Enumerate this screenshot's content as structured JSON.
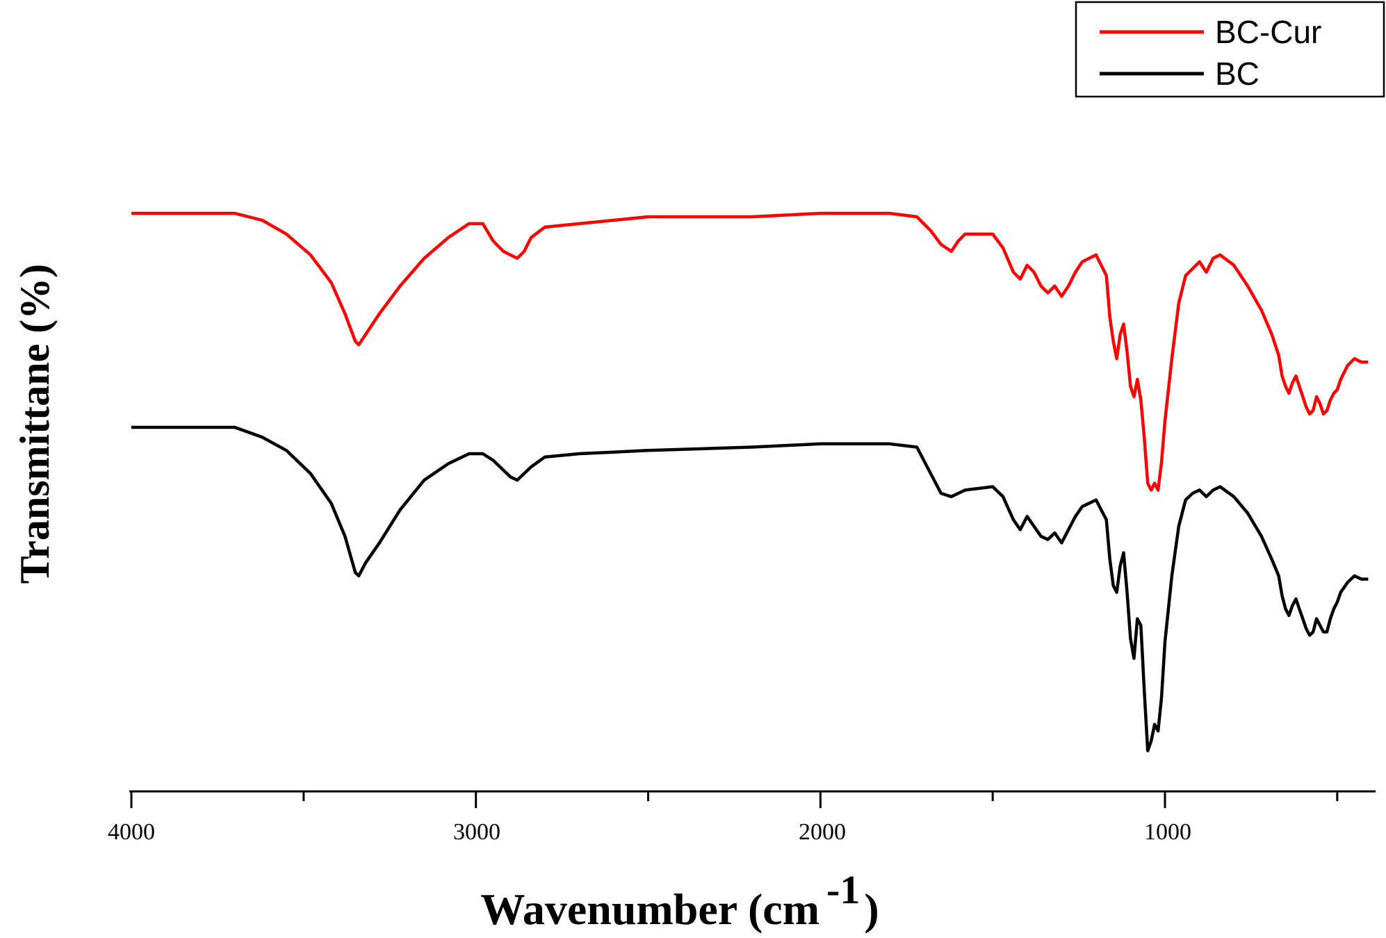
{
  "chart_data": {
    "type": "line",
    "title": "",
    "xlabel": "Wavenumber (cm",
    "xlabel_superscript": "-1",
    "xlabel_close": ")",
    "ylabel": "Transmittane (%)",
    "xlim": [
      4000,
      400
    ],
    "x_reversed": true,
    "x_ticks": [
      4000,
      3000,
      2000,
      1000
    ],
    "x_minor_ticks": [
      3500,
      2500,
      1500,
      500
    ],
    "grid": false,
    "y_ticks_shown": false,
    "legend_position": "top-right",
    "series": [
      {
        "name": "BC-Cur",
        "color": "#ff0000",
        "points": [
          [
            4000,
            100
          ],
          [
            3800,
            100
          ],
          [
            3700,
            100
          ],
          [
            3620,
            98
          ],
          [
            3550,
            94
          ],
          [
            3480,
            88
          ],
          [
            3420,
            80
          ],
          [
            3380,
            71
          ],
          [
            3350,
            63
          ],
          [
            3340,
            62
          ],
          [
            3320,
            65
          ],
          [
            3280,
            71
          ],
          [
            3220,
            79
          ],
          [
            3150,
            87
          ],
          [
            3080,
            93
          ],
          [
            3020,
            97
          ],
          [
            2980,
            97
          ],
          [
            2950,
            92
          ],
          [
            2920,
            89
          ],
          [
            2900,
            88
          ],
          [
            2880,
            87
          ],
          [
            2860,
            89
          ],
          [
            2840,
            93
          ],
          [
            2800,
            96
          ],
          [
            2700,
            97
          ],
          [
            2500,
            99
          ],
          [
            2200,
            99
          ],
          [
            2000,
            100
          ],
          [
            1800,
            100
          ],
          [
            1720,
            99
          ],
          [
            1680,
            95
          ],
          [
            1650,
            91
          ],
          [
            1620,
            89
          ],
          [
            1600,
            92
          ],
          [
            1580,
            94
          ],
          [
            1500,
            94
          ],
          [
            1470,
            90
          ],
          [
            1440,
            83
          ],
          [
            1420,
            81
          ],
          [
            1400,
            85
          ],
          [
            1380,
            83
          ],
          [
            1360,
            79
          ],
          [
            1340,
            77
          ],
          [
            1320,
            79
          ],
          [
            1300,
            76
          ],
          [
            1280,
            79
          ],
          [
            1260,
            83
          ],
          [
            1240,
            86
          ],
          [
            1220,
            87
          ],
          [
            1200,
            88
          ],
          [
            1190,
            86
          ],
          [
            1170,
            82
          ],
          [
            1160,
            70
          ],
          [
            1150,
            63
          ],
          [
            1140,
            58
          ],
          [
            1130,
            65
          ],
          [
            1120,
            68
          ],
          [
            1110,
            60
          ],
          [
            1100,
            50
          ],
          [
            1090,
            47
          ],
          [
            1080,
            52
          ],
          [
            1070,
            46
          ],
          [
            1060,
            35
          ],
          [
            1050,
            22
          ],
          [
            1040,
            20
          ],
          [
            1030,
            22
          ],
          [
            1020,
            20
          ],
          [
            1010,
            28
          ],
          [
            1000,
            40
          ],
          [
            980,
            58
          ],
          [
            960,
            74
          ],
          [
            940,
            82
          ],
          [
            920,
            84
          ],
          [
            900,
            86
          ],
          [
            880,
            83
          ],
          [
            860,
            87
          ],
          [
            840,
            88
          ],
          [
            800,
            85
          ],
          [
            760,
            79
          ],
          [
            720,
            72
          ],
          [
            690,
            65
          ],
          [
            670,
            59
          ],
          [
            660,
            53
          ],
          [
            650,
            50
          ],
          [
            640,
            48
          ],
          [
            630,
            51
          ],
          [
            620,
            53
          ],
          [
            610,
            50
          ],
          [
            600,
            47
          ],
          [
            590,
            44
          ],
          [
            580,
            42
          ],
          [
            570,
            43
          ],
          [
            560,
            47
          ],
          [
            550,
            45
          ],
          [
            540,
            42
          ],
          [
            530,
            43
          ],
          [
            520,
            46
          ],
          [
            510,
            48
          ],
          [
            500,
            49
          ],
          [
            490,
            52
          ],
          [
            470,
            56
          ],
          [
            450,
            58
          ],
          [
            430,
            57
          ],
          [
            410,
            57
          ]
        ]
      },
      {
        "name": "BC",
        "color": "#000000",
        "points": [
          [
            4000,
            100
          ],
          [
            3800,
            100
          ],
          [
            3700,
            100
          ],
          [
            3620,
            97
          ],
          [
            3550,
            93
          ],
          [
            3480,
            86
          ],
          [
            3420,
            77
          ],
          [
            3380,
            67
          ],
          [
            3350,
            56
          ],
          [
            3340,
            55
          ],
          [
            3320,
            59
          ],
          [
            3280,
            65
          ],
          [
            3220,
            75
          ],
          [
            3150,
            84
          ],
          [
            3080,
            89
          ],
          [
            3020,
            92
          ],
          [
            2980,
            92
          ],
          [
            2950,
            90
          ],
          [
            2920,
            87
          ],
          [
            2900,
            85
          ],
          [
            2880,
            84
          ],
          [
            2860,
            86
          ],
          [
            2840,
            88
          ],
          [
            2800,
            91
          ],
          [
            2700,
            92
          ],
          [
            2500,
            93
          ],
          [
            2200,
            94
          ],
          [
            2000,
            95
          ],
          [
            1800,
            95
          ],
          [
            1720,
            94
          ],
          [
            1680,
            86
          ],
          [
            1650,
            80
          ],
          [
            1620,
            79
          ],
          [
            1600,
            80
          ],
          [
            1580,
            81
          ],
          [
            1500,
            82
          ],
          [
            1470,
            79
          ],
          [
            1440,
            72
          ],
          [
            1420,
            69
          ],
          [
            1400,
            73
          ],
          [
            1380,
            70
          ],
          [
            1360,
            67
          ],
          [
            1340,
            66
          ],
          [
            1320,
            68
          ],
          [
            1300,
            65
          ],
          [
            1280,
            69
          ],
          [
            1260,
            73
          ],
          [
            1240,
            76
          ],
          [
            1220,
            77
          ],
          [
            1200,
            78
          ],
          [
            1190,
            76
          ],
          [
            1170,
            72
          ],
          [
            1160,
            60
          ],
          [
            1150,
            52
          ],
          [
            1140,
            50
          ],
          [
            1130,
            58
          ],
          [
            1120,
            62
          ],
          [
            1110,
            50
          ],
          [
            1100,
            36
          ],
          [
            1090,
            30
          ],
          [
            1080,
            42
          ],
          [
            1070,
            40
          ],
          [
            1060,
            20
          ],
          [
            1050,
            2
          ],
          [
            1040,
            5
          ],
          [
            1030,
            10
          ],
          [
            1020,
            8
          ],
          [
            1010,
            18
          ],
          [
            1000,
            35
          ],
          [
            980,
            55
          ],
          [
            960,
            70
          ],
          [
            940,
            78
          ],
          [
            920,
            80
          ],
          [
            900,
            81
          ],
          [
            880,
            79
          ],
          [
            860,
            81
          ],
          [
            840,
            82
          ],
          [
            800,
            79
          ],
          [
            760,
            74
          ],
          [
            720,
            67
          ],
          [
            690,
            60
          ],
          [
            670,
            55
          ],
          [
            660,
            49
          ],
          [
            650,
            45
          ],
          [
            640,
            43
          ],
          [
            630,
            46
          ],
          [
            620,
            48
          ],
          [
            610,
            45
          ],
          [
            600,
            42
          ],
          [
            590,
            39
          ],
          [
            580,
            37
          ],
          [
            570,
            38
          ],
          [
            560,
            42
          ],
          [
            550,
            40
          ],
          [
            540,
            38
          ],
          [
            530,
            38
          ],
          [
            520,
            42
          ],
          [
            510,
            45
          ],
          [
            500,
            47
          ],
          [
            490,
            50
          ],
          [
            470,
            53
          ],
          [
            450,
            55
          ],
          [
            430,
            54
          ],
          [
            410,
            54
          ]
        ]
      }
    ]
  },
  "legend": {
    "items": [
      {
        "label": "BC-Cur",
        "color": "#ff0000"
      },
      {
        "label": "BC",
        "color": "#000000"
      }
    ]
  },
  "axis_labels": {
    "x_main": "Wavenumber (cm",
    "x_sup": "-1",
    "x_close": ")",
    "y": "Transmittane (%)"
  },
  "ticks": {
    "t4000": "4000",
    "t3000": "3000",
    "t2000": "2000",
    "t1000": "1000"
  }
}
